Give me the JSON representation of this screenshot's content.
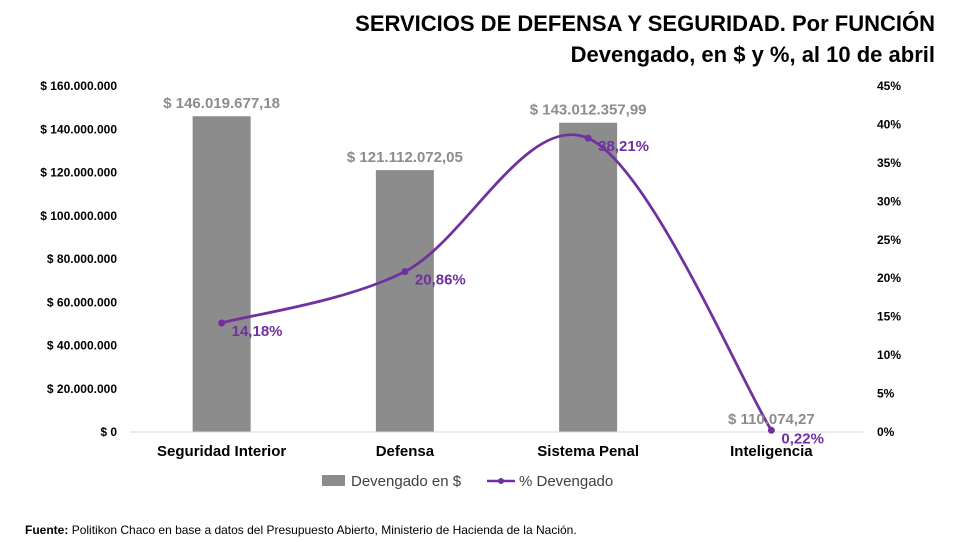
{
  "header": {
    "title_line1": "SERVICIOS DE DEFENSA Y SEGURIDAD. Por FUNCIÓN",
    "title_line2": "Devengado, en $ y %, al 10 de abril"
  },
  "source": {
    "label": "Fuente:",
    "text": "Politikon Chaco en base a datos del Presupuesto Abierto, Ministerio de Hacienda de la Nación."
  },
  "colors": {
    "bar": "#8c8c8c",
    "line": "#7030a0",
    "text": "#000000"
  },
  "chart_data": {
    "type": "bar",
    "categories": [
      "Seguridad Interior",
      "Defensa",
      "Sistema Penal",
      "Inteligencia"
    ],
    "series": [
      {
        "name": "Devengado en $",
        "type": "bar",
        "axis": "left",
        "values": [
          146019677.18,
          121112072.05,
          143012357.99,
          110074.27
        ],
        "labels": [
          "$ 146.019.677,18",
          "$ 121.112.072,05",
          "$ 143.012.357,99",
          "$ 110.074,27"
        ]
      },
      {
        "name": "% Devengado",
        "type": "line",
        "axis": "right",
        "smooth": true,
        "values": [
          14.18,
          20.86,
          38.21,
          0.22
        ],
        "labels": [
          "14,18%",
          "20,86%",
          "38,21%",
          "0,22%"
        ]
      }
    ],
    "y_left": {
      "ylim": [
        0,
        160000000
      ],
      "ticks": [
        0,
        20000000,
        40000000,
        60000000,
        80000000,
        100000000,
        120000000,
        140000000,
        160000000
      ],
      "tick_labels": [
        "$ 0",
        "$ 20.000.000",
        "$ 40.000.000",
        "$ 60.000.000",
        "$ 80.000.000",
        "$ 100.000.000",
        "$ 120.000.000",
        "$ 140.000.000",
        "$ 160.000.000"
      ]
    },
    "y_right": {
      "ylim": [
        0,
        45
      ],
      "ticks": [
        0,
        5,
        10,
        15,
        20,
        25,
        30,
        35,
        40,
        45
      ],
      "tick_labels": [
        "0%",
        "5%",
        "10%",
        "15%",
        "20%",
        "25%",
        "30%",
        "35%",
        "40%",
        "45%"
      ]
    },
    "grid": false,
    "legend": {
      "position": "bottom",
      "entries": [
        "Devengado en $",
        "% Devengado"
      ]
    }
  }
}
